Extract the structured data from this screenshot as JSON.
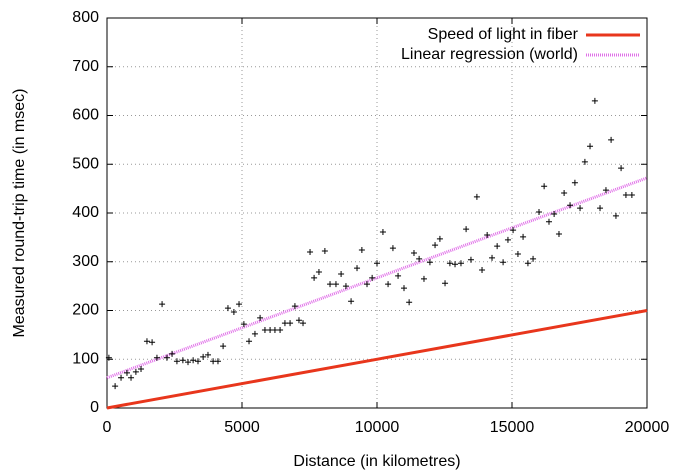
{
  "chart_data": {
    "type": "scatter",
    "x_label": "Distance (in kilometres)",
    "y_label": "Measured round-trip time (in msec)",
    "xlim": [
      0,
      20000
    ],
    "ylim": [
      0,
      800
    ],
    "xticks": [
      0,
      5000,
      10000,
      15000,
      20000
    ],
    "yticks": [
      0,
      100,
      200,
      300,
      400,
      500,
      600,
      700,
      800
    ],
    "grid": true,
    "legend": "top-right",
    "series": [
      {
        "name": "Speed of light in fiber",
        "type": "line",
        "style": "solid",
        "color": "#e8361c",
        "x": [
          0,
          20000
        ],
        "values": [
          0,
          200
        ]
      },
      {
        "name": "Linear regression (world)",
        "type": "line",
        "style": "dotted",
        "color": "#e070e8",
        "x": [
          0,
          20000
        ],
        "values": [
          62,
          472
        ]
      },
      {
        "type": "scatter",
        "color": "#000000",
        "x": [
          70,
          300,
          520,
          740,
          890,
          1070,
          1260,
          1480,
          1670,
          1850,
          2040,
          2220,
          2410,
          2590,
          2810,
          3000,
          3190,
          3370,
          3560,
          3740,
          3930,
          4110,
          4300,
          4480,
          4700,
          4890,
          5070,
          5260,
          5480,
          5670,
          5850,
          6040,
          6220,
          6410,
          6590,
          6780,
          6960,
          7110,
          7260,
          7520,
          7670,
          7850,
          8070,
          8260,
          8480,
          8670,
          8850,
          9040,
          9260,
          9440,
          9630,
          9820,
          10000,
          10220,
          10410,
          10590,
          10780,
          11000,
          11190,
          11370,
          11560,
          11740,
          11960,
          12150,
          12330,
          12520,
          12700,
          12890,
          13110,
          13300,
          13480,
          13700,
          13890,
          14080,
          14260,
          14450,
          14670,
          14850,
          15040,
          15220,
          15410,
          15590,
          15780,
          16000,
          16190,
          16370,
          16560,
          16740,
          16930,
          17150,
          17330,
          17520,
          17700,
          17890,
          18070,
          18260,
          18480,
          18670,
          18850,
          19040,
          19220,
          19440
        ],
        "values": [
          103,
          45,
          62,
          72,
          62,
          74,
          80,
          137,
          135,
          103,
          213,
          103,
          111,
          96,
          98,
          94,
          98,
          96,
          105,
          109,
          96,
          96,
          127,
          205,
          197,
          213,
          172,
          137,
          152,
          185,
          160,
          160,
          160,
          160,
          174,
          174,
          209,
          180,
          174,
          320,
          267,
          279,
          322,
          254,
          254,
          275,
          250,
          219,
          287,
          324,
          254,
          267,
          297,
          361,
          254,
          328,
          271,
          246,
          217,
          318,
          306,
          265,
          299,
          334,
          347,
          256,
          297,
          295,
          297,
          367,
          304,
          433,
          283,
          355,
          308,
          332,
          299,
          345,
          365,
          316,
          351,
          297,
          306,
          402,
          455,
          382,
          398,
          357,
          441,
          416,
          462,
          410,
          505,
          537,
          630,
          410,
          447,
          550,
          394,
          492,
          437,
          437
        ]
      }
    ]
  }
}
